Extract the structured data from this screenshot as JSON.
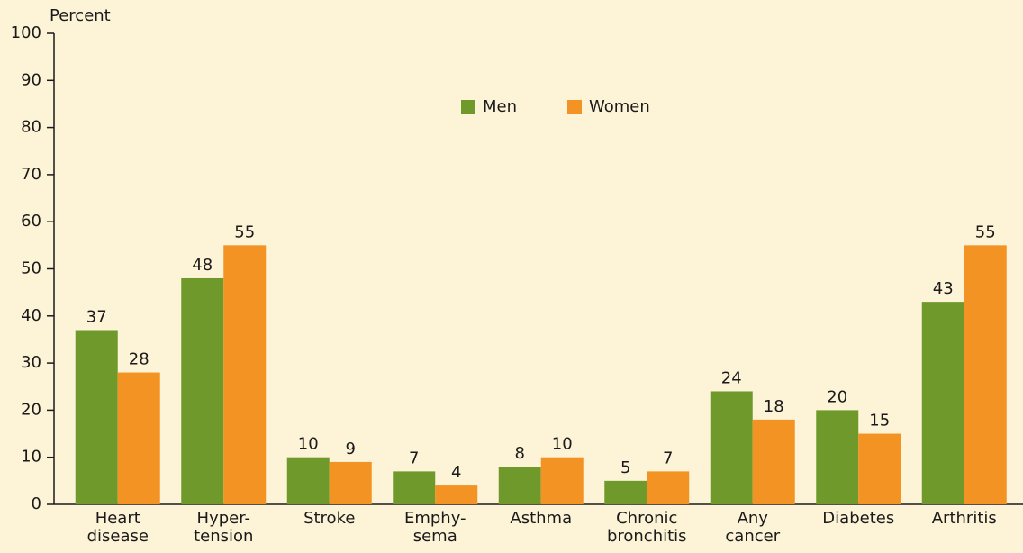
{
  "chart_data": {
    "type": "bar",
    "y_axis_label": "Percent",
    "categories": [
      "Heart\ndisease",
      "Hyper-\ntension",
      "Stroke",
      "Emphy-\nsema",
      "Asthma",
      "Chronic\nbronchitis",
      "Any\ncancer",
      "Diabetes",
      "Arthritis"
    ],
    "series": [
      {
        "name": "Men",
        "color": "#6f9a2b",
        "values": [
          37,
          48,
          10,
          7,
          8,
          5,
          24,
          20,
          43
        ]
      },
      {
        "name": "Women",
        "color": "#f39323",
        "values": [
          28,
          55,
          9,
          4,
          10,
          7,
          18,
          15,
          55
        ]
      }
    ],
    "ylim": [
      0,
      100
    ],
    "yticks": [
      0,
      10,
      20,
      30,
      40,
      50,
      60,
      70,
      80,
      90,
      100
    ]
  }
}
